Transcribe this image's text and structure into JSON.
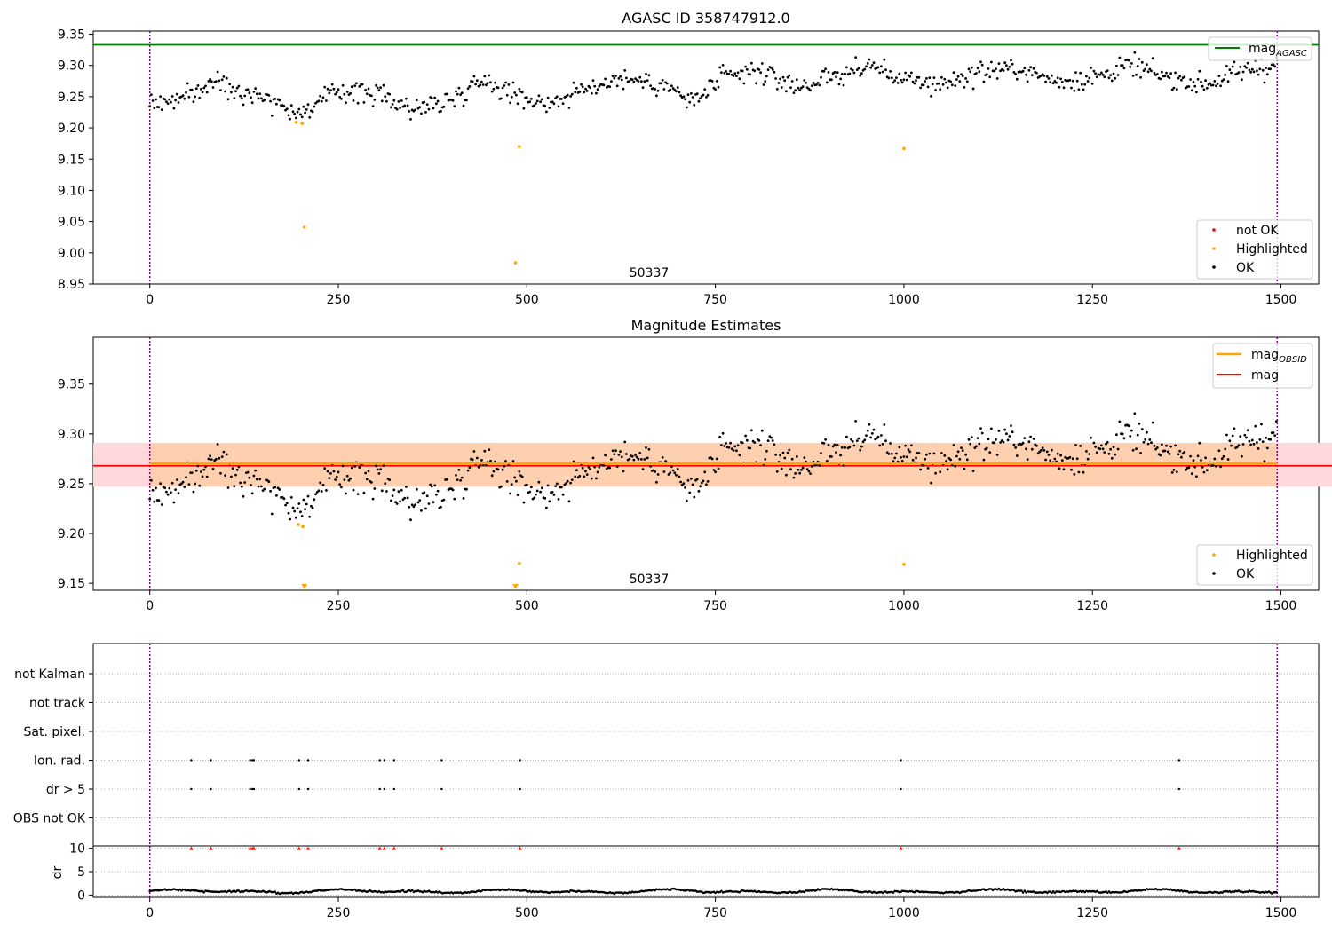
{
  "colors": {
    "ok": "#000000",
    "highlighted": "#ffa500",
    "not_ok": "#ff0000",
    "agasc_line": "#008000",
    "mag_line": "#ff0000",
    "mag_obsid_line": "#ffa500",
    "band_obsid": "#ffd0b0",
    "band_mag": "#ffd8dc",
    "obs_boundary": "#800080"
  },
  "chart_data": [
    {
      "type": "scatter",
      "title": "AGASC ID 358747912.0",
      "obsid_label": "50337",
      "xlim": [
        -75,
        1550
      ],
      "ylim": [
        8.95,
        9.355
      ],
      "xticks": [
        0,
        250,
        500,
        750,
        1000,
        1250,
        1500
      ],
      "yticks": [
        8.95,
        9.0,
        9.05,
        9.1,
        9.15,
        9.2,
        9.25,
        9.3,
        9.35
      ],
      "ytick_labels": [
        "8.95",
        "9.00",
        "9.05",
        "9.10",
        "9.15",
        "9.20",
        "9.25",
        "9.30",
        "9.35"
      ],
      "obs_boundaries": [
        0,
        1495
      ],
      "reference_lines": [
        {
          "name": "mag_AGASC",
          "y": 9.333
        }
      ],
      "legend_lines": [
        {
          "label": "mag",
          "sub": "AGASC"
        }
      ],
      "legend_points": [
        "not OK",
        "Highlighted",
        "OK"
      ],
      "highlighted_points": [
        [
          194,
          9.209
        ],
        [
          202,
          9.207
        ],
        [
          205,
          9.041
        ],
        [
          485,
          8.984
        ],
        [
          490,
          9.17
        ],
        [
          1000,
          9.167
        ]
      ],
      "series_ok": {
        "x_start": 0,
        "x_end": 1495,
        "step": 2,
        "trend_knots": [
          [
            0,
            9.24
          ],
          [
            40,
            9.245
          ],
          [
            90,
            9.275
          ],
          [
            120,
            9.26
          ],
          [
            150,
            9.252
          ],
          [
            200,
            9.222
          ],
          [
            250,
            9.26
          ],
          [
            300,
            9.255
          ],
          [
            350,
            9.23
          ],
          [
            400,
            9.245
          ],
          [
            440,
            9.28
          ],
          [
            490,
            9.25
          ],
          [
            530,
            9.24
          ],
          [
            575,
            9.26
          ],
          [
            620,
            9.28
          ],
          [
            680,
            9.27
          ],
          [
            720,
            9.24
          ],
          [
            760,
            9.28
          ],
          [
            810,
            9.29
          ],
          [
            860,
            9.265
          ],
          [
            900,
            9.28
          ],
          [
            960,
            9.3
          ],
          [
            1000,
            9.275
          ],
          [
            1050,
            9.27
          ],
          [
            1100,
            9.29
          ],
          [
            1150,
            9.295
          ],
          [
            1200,
            9.275
          ],
          [
            1250,
            9.28
          ],
          [
            1300,
            9.3
          ],
          [
            1350,
            9.28
          ],
          [
            1400,
            9.27
          ],
          [
            1460,
            9.295
          ],
          [
            1495,
            9.3
          ]
        ],
        "noise": 0.012
      }
    },
    {
      "type": "scatter",
      "title": "Magnitude Estimates",
      "obsid_label": "50337",
      "xlim": [
        -75,
        1550
      ],
      "ylim": [
        9.143,
        9.397
      ],
      "xticks": [
        0,
        250,
        500,
        750,
        1000,
        1250,
        1500
      ],
      "yticks": [
        9.15,
        9.2,
        9.25,
        9.3,
        9.35
      ],
      "ytick_labels": [
        "9.15",
        "9.20",
        "9.25",
        "9.30",
        "9.35"
      ],
      "obs_boundaries": [
        0,
        1495
      ],
      "bands": [
        {
          "name": "mag band",
          "x_range": [
            -75,
            1570
          ],
          "y_range": [
            9.247,
            9.291
          ]
        },
        {
          "name": "mag_OBSID band",
          "x_range": [
            0,
            1495
          ],
          "y_range": [
            9.247,
            9.291
          ]
        }
      ],
      "reference_lines": [
        {
          "name": "mag",
          "y": 9.268,
          "x_range": [
            -75,
            1570
          ]
        },
        {
          "name": "mag_OBSID",
          "y": 9.269,
          "x_range": [
            0,
            1495
          ]
        }
      ],
      "legend_lines": [
        {
          "label": "mag",
          "sub": "OBSID"
        },
        {
          "label": "mag",
          "sub": ""
        }
      ],
      "legend_points": [
        "Highlighted",
        "OK"
      ],
      "highlighted_points": [
        [
          197,
          9.209
        ],
        [
          203,
          9.207
        ],
        [
          490,
          9.17
        ],
        [
          1000,
          9.169
        ]
      ],
      "below_limit_markers": [
        205,
        485
      ],
      "series_ok": {
        "x_start": 0,
        "x_end": 1495,
        "step": 2,
        "trend_knots": [
          [
            0,
            9.24
          ],
          [
            40,
            9.245
          ],
          [
            90,
            9.275
          ],
          [
            120,
            9.26
          ],
          [
            150,
            9.252
          ],
          [
            200,
            9.222
          ],
          [
            250,
            9.26
          ],
          [
            300,
            9.255
          ],
          [
            350,
            9.23
          ],
          [
            400,
            9.245
          ],
          [
            440,
            9.28
          ],
          [
            490,
            9.25
          ],
          [
            530,
            9.24
          ],
          [
            575,
            9.26
          ],
          [
            620,
            9.28
          ],
          [
            680,
            9.27
          ],
          [
            720,
            9.24
          ],
          [
            760,
            9.28
          ],
          [
            810,
            9.29
          ],
          [
            860,
            9.265
          ],
          [
            900,
            9.28
          ],
          [
            960,
            9.3
          ],
          [
            1000,
            9.275
          ],
          [
            1050,
            9.27
          ],
          [
            1100,
            9.29
          ],
          [
            1150,
            9.295
          ],
          [
            1200,
            9.275
          ],
          [
            1250,
            9.28
          ],
          [
            1300,
            9.3
          ],
          [
            1350,
            9.28
          ],
          [
            1400,
            9.27
          ],
          [
            1460,
            9.295
          ],
          [
            1495,
            9.3
          ]
        ],
        "noise": 0.012
      }
    },
    {
      "type": "scatter",
      "title": "",
      "xlim": [
        -75,
        1550
      ],
      "xticks": [
        0,
        250,
        500,
        750,
        1000,
        1250,
        1500
      ],
      "obs_boundaries": [
        0,
        1495
      ],
      "flag_rows": [
        "not Kalman",
        "not track",
        "Sat. pixel.",
        "Ion. rad.",
        "dr > 5",
        "OBS not OK"
      ],
      "flag_events": {
        "Ion. rad.": [
          55,
          81,
          133,
          136,
          138,
          198,
          210,
          305,
          311,
          324,
          387,
          491,
          996,
          1365
        ],
        "dr > 5": [
          55,
          81,
          133,
          136,
          138,
          198,
          210,
          305,
          311,
          324,
          387,
          491,
          996,
          1365
        ]
      },
      "dr": {
        "ylabel": "dr",
        "ylim": [
          -0.5,
          10.5
        ],
        "yticks": [
          0,
          5,
          10
        ],
        "ytick_labels": [
          "0",
          "5",
          "10"
        ],
        "clipped_markers_at_10": [
          55,
          81,
          133,
          136,
          138,
          198,
          210,
          305,
          311,
          324,
          387,
          491,
          996,
          1365
        ],
        "mean": 0.8,
        "amplitude": 0.45
      }
    }
  ]
}
